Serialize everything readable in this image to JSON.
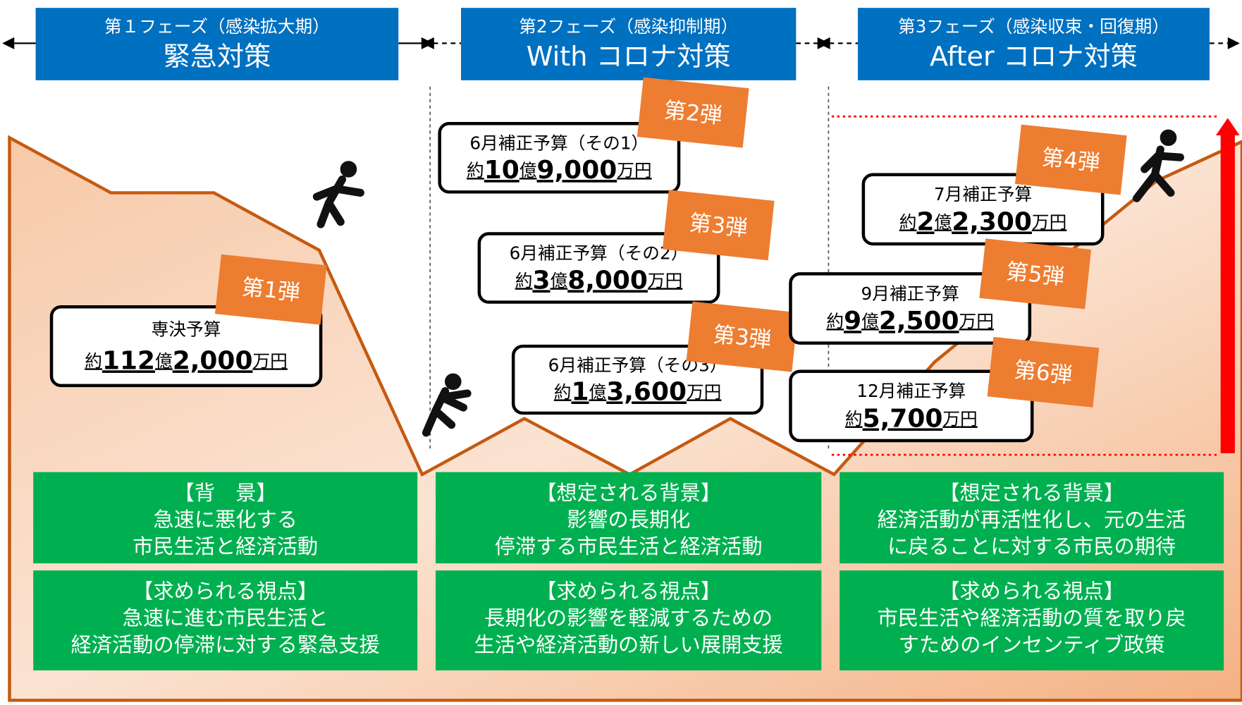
{
  "phases": [
    {
      "subtitle": "第１フェーズ（感染拡大期）",
      "title": "緊急対策"
    },
    {
      "subtitle": "第2フェーズ（感染抑制期）",
      "title": "With コロナ対策"
    },
    {
      "subtitle": "第3フェーズ（感染収束・回復期）",
      "title": "After コロナ対策"
    }
  ],
  "budgets": [
    {
      "tag": "第1弾",
      "name": "専決予算",
      "amount": [
        "約",
        "112",
        "億",
        "2,000",
        "万円"
      ]
    },
    {
      "tag": "第2弾",
      "name": "6月補正予算（その1）",
      "amount": [
        "約",
        "10",
        "億",
        "9,000",
        "万円"
      ]
    },
    {
      "tag": "第3弾",
      "name": "6月補正予算（その2）",
      "amount": [
        "約",
        "3",
        "億",
        "8,000",
        "万円"
      ]
    },
    {
      "tag": "第3弾",
      "name": "6月補正予算（その3）",
      "amount": [
        "約",
        "1",
        "億",
        "3,600",
        "万円"
      ]
    },
    {
      "tag": "第4弾",
      "name": "7月補正予算",
      "amount": [
        "約",
        "2",
        "億",
        "2,300",
        "万円"
      ]
    },
    {
      "tag": "第5弾",
      "name": "9月補正予算",
      "amount": [
        "約",
        "9",
        "億",
        "2,500",
        "万円"
      ]
    },
    {
      "tag": "第6弾",
      "name": "12月補正予算",
      "amount": [
        "約",
        "5,700",
        "万円"
      ]
    }
  ],
  "boxes": [
    {
      "background": [
        "【背　景】",
        "急速に悪化する",
        "市民生活と経済活動"
      ],
      "viewpoint": [
        "【求められる視点】",
        "急速に進む市民生活と",
        "経済活動の停滞に対する緊急支援"
      ]
    },
    {
      "background": [
        "【想定される背景】",
        "影響の長期化",
        "停滞する市民生活と経済活動"
      ],
      "viewpoint": [
        "【求められる視点】",
        "長期化の影響を軽減するための",
        "生活や経済活動の新しい展開支援"
      ]
    },
    {
      "background": [
        "【想定される背景】",
        "経済活動が再活性化し、元の生活",
        "に戻ることに対する市民の期待"
      ],
      "viewpoint": [
        "【求められる視点】",
        "市民生活や経済活動の質を取り戻",
        "すためのインセンティブ政策"
      ]
    }
  ]
}
